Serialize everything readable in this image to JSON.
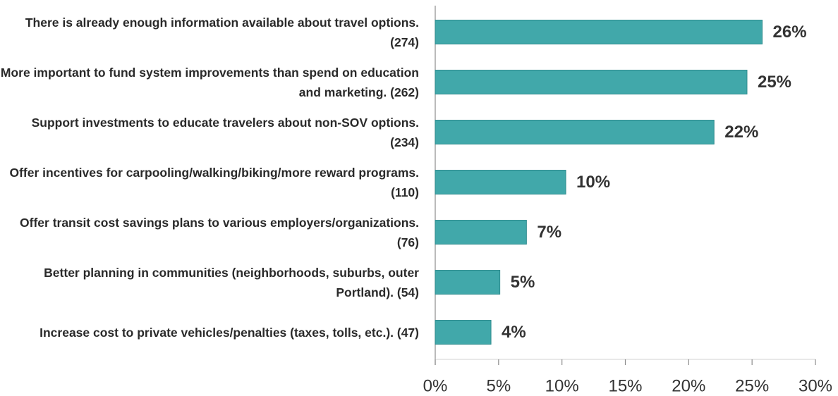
{
  "chart_data": {
    "type": "bar",
    "orientation": "horizontal",
    "categories": [
      "There is already enough information available about travel options. (274)",
      "More important to fund system improvements than spend on education and marketing. (262)",
      "Support investments to educate travelers about non-SOV options. (234)",
      "Offer incentives for carpooling/walking/biking/more reward programs. (110)",
      "Offer transit cost savings plans to various employers/organizations. (76)",
      "Better planning in communities (neighborhoods, suburbs, outer Portland). (54)",
      "Increase cost to private vehicles/penalties (taxes, tolls, etc.). (47)"
    ],
    "values": [
      25.8,
      24.6,
      22,
      10.3,
      7.2,
      5.1,
      4.4
    ],
    "value_labels": [
      "26%",
      "25%",
      "22%",
      "10%",
      "7%",
      "5%",
      "4%"
    ],
    "color": "#41a8aa",
    "xlim": [
      0,
      30
    ],
    "xticks": [
      {
        "value": 0,
        "label": "0%"
      },
      {
        "value": 5,
        "label": "5%"
      },
      {
        "value": 10,
        "label": "10%"
      },
      {
        "value": 15,
        "label": "15%"
      },
      {
        "value": 20,
        "label": "20%"
      },
      {
        "value": 25,
        "label": "25%"
      },
      {
        "value": 30,
        "label": "30%"
      }
    ],
    "grid": false
  }
}
